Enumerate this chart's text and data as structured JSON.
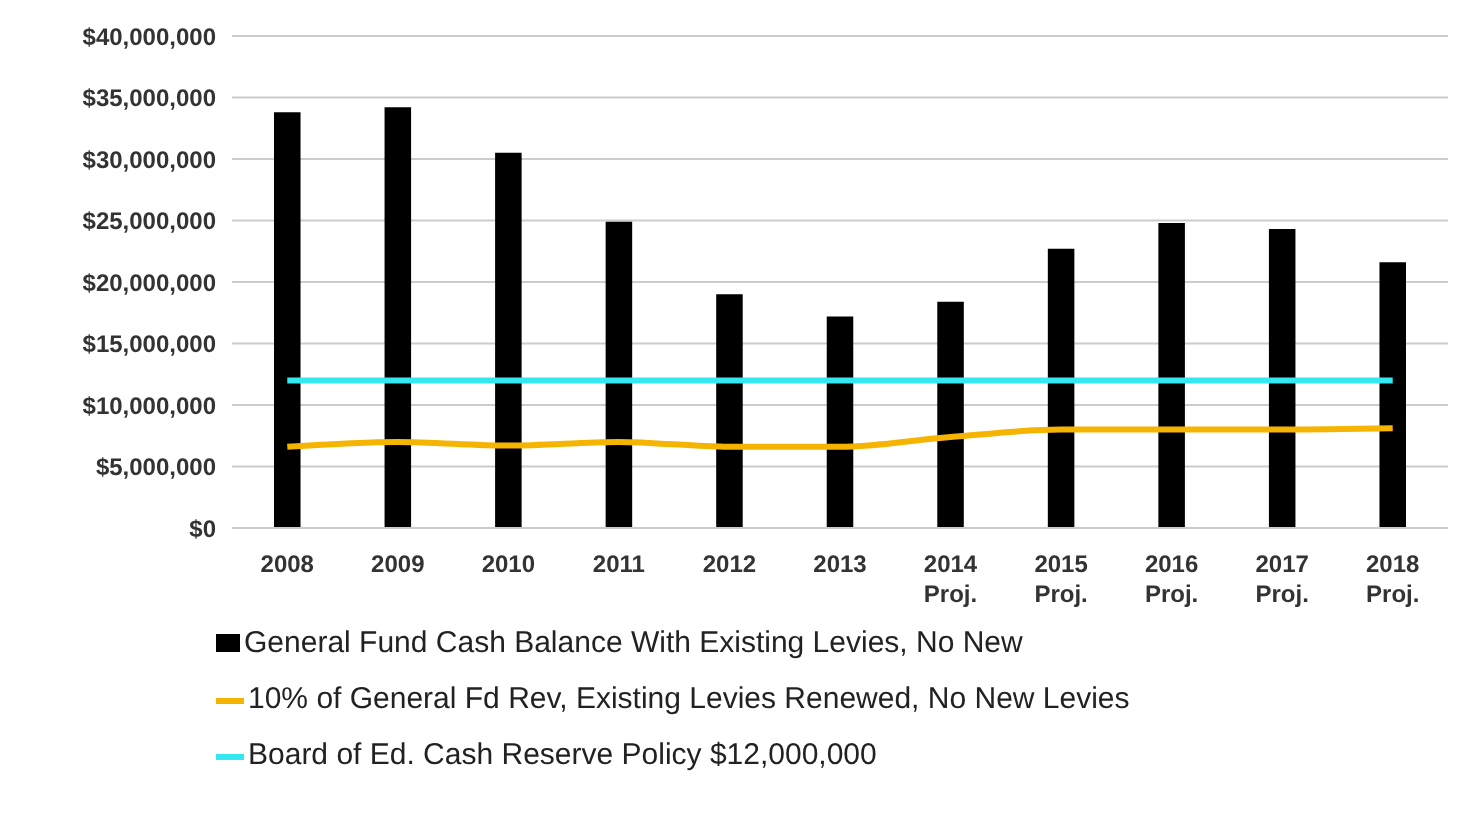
{
  "chart_data": {
    "type": "bar",
    "categories": [
      "2008",
      "2009",
      "2010",
      "2011",
      "2012",
      "2013",
      "2014\nProj.",
      "2015\nProj.",
      "2016\nProj.",
      "2017\nProj.",
      "2018\nProj."
    ],
    "series": [
      {
        "name": "General Fund Cash Balance With Existing Levies, No New",
        "color": "#000000",
        "values": [
          33800000,
          34200000,
          30500000,
          24900000,
          19000000,
          17200000,
          18400000,
          22700000,
          24800000,
          24300000,
          21600000
        ]
      },
      {
        "type": "line",
        "name": "10% of General Fd Rev, Existing Levies Renewed, No New Levies",
        "color": "#f5b400",
        "values": [
          6600000,
          7000000,
          6700000,
          7000000,
          6600000,
          6600000,
          7400000,
          8000000,
          8000000,
          8000000,
          8100000
        ]
      },
      {
        "type": "line",
        "name": "Board of Ed. Cash Reserve Policy $12,000,000",
        "color": "#33e8f0",
        "values": [
          12000000,
          12000000,
          12000000,
          12000000,
          12000000,
          12000000,
          12000000,
          12000000,
          12000000,
          12000000,
          12000000
        ]
      }
    ],
    "ylim": [
      0,
      40000000
    ],
    "yticks": [
      {
        "value": 0,
        "label": "$0"
      },
      {
        "value": 5000000,
        "label": "$5,000,000"
      },
      {
        "value": 10000000,
        "label": "$10,000,000"
      },
      {
        "value": 15000000,
        "label": "$15,000,000"
      },
      {
        "value": 20000000,
        "label": "$20,000,000"
      },
      {
        "value": 25000000,
        "label": "$25,000,000"
      },
      {
        "value": 30000000,
        "label": "$30,000,000"
      },
      {
        "value": 35000000,
        "label": "$35,000,000"
      },
      {
        "value": 40000000,
        "label": "$40,000,000"
      }
    ],
    "grid": "y",
    "legend": "bottom",
    "marker": "none"
  }
}
